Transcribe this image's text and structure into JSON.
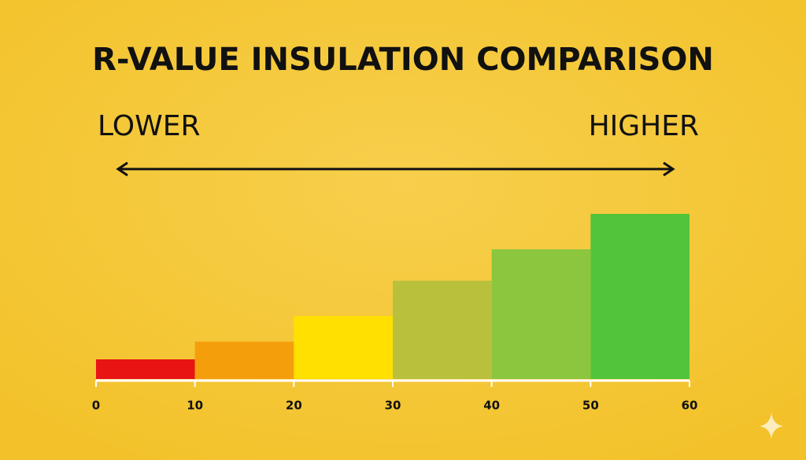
{
  "chart_data": {
    "type": "histogram",
    "title": "R-VALUE INSULATION COMPARISON",
    "annotations": [
      "LOWER",
      "HIGHER"
    ],
    "bins": [
      0,
      10,
      20,
      30,
      40,
      50,
      60
    ],
    "values": [
      1,
      1.9,
      3.2,
      5,
      6.6,
      8.4
    ],
    "colors": [
      "#e81414",
      "#f59e0c",
      "#ffe000",
      "#b9c13c",
      "#8cc63f",
      "#52c43a"
    ],
    "xlim": [
      0,
      60
    ],
    "xticks": [
      0,
      10,
      20,
      30,
      40,
      50,
      60
    ],
    "ylim": [
      0,
      10
    ],
    "grid": false
  }
}
